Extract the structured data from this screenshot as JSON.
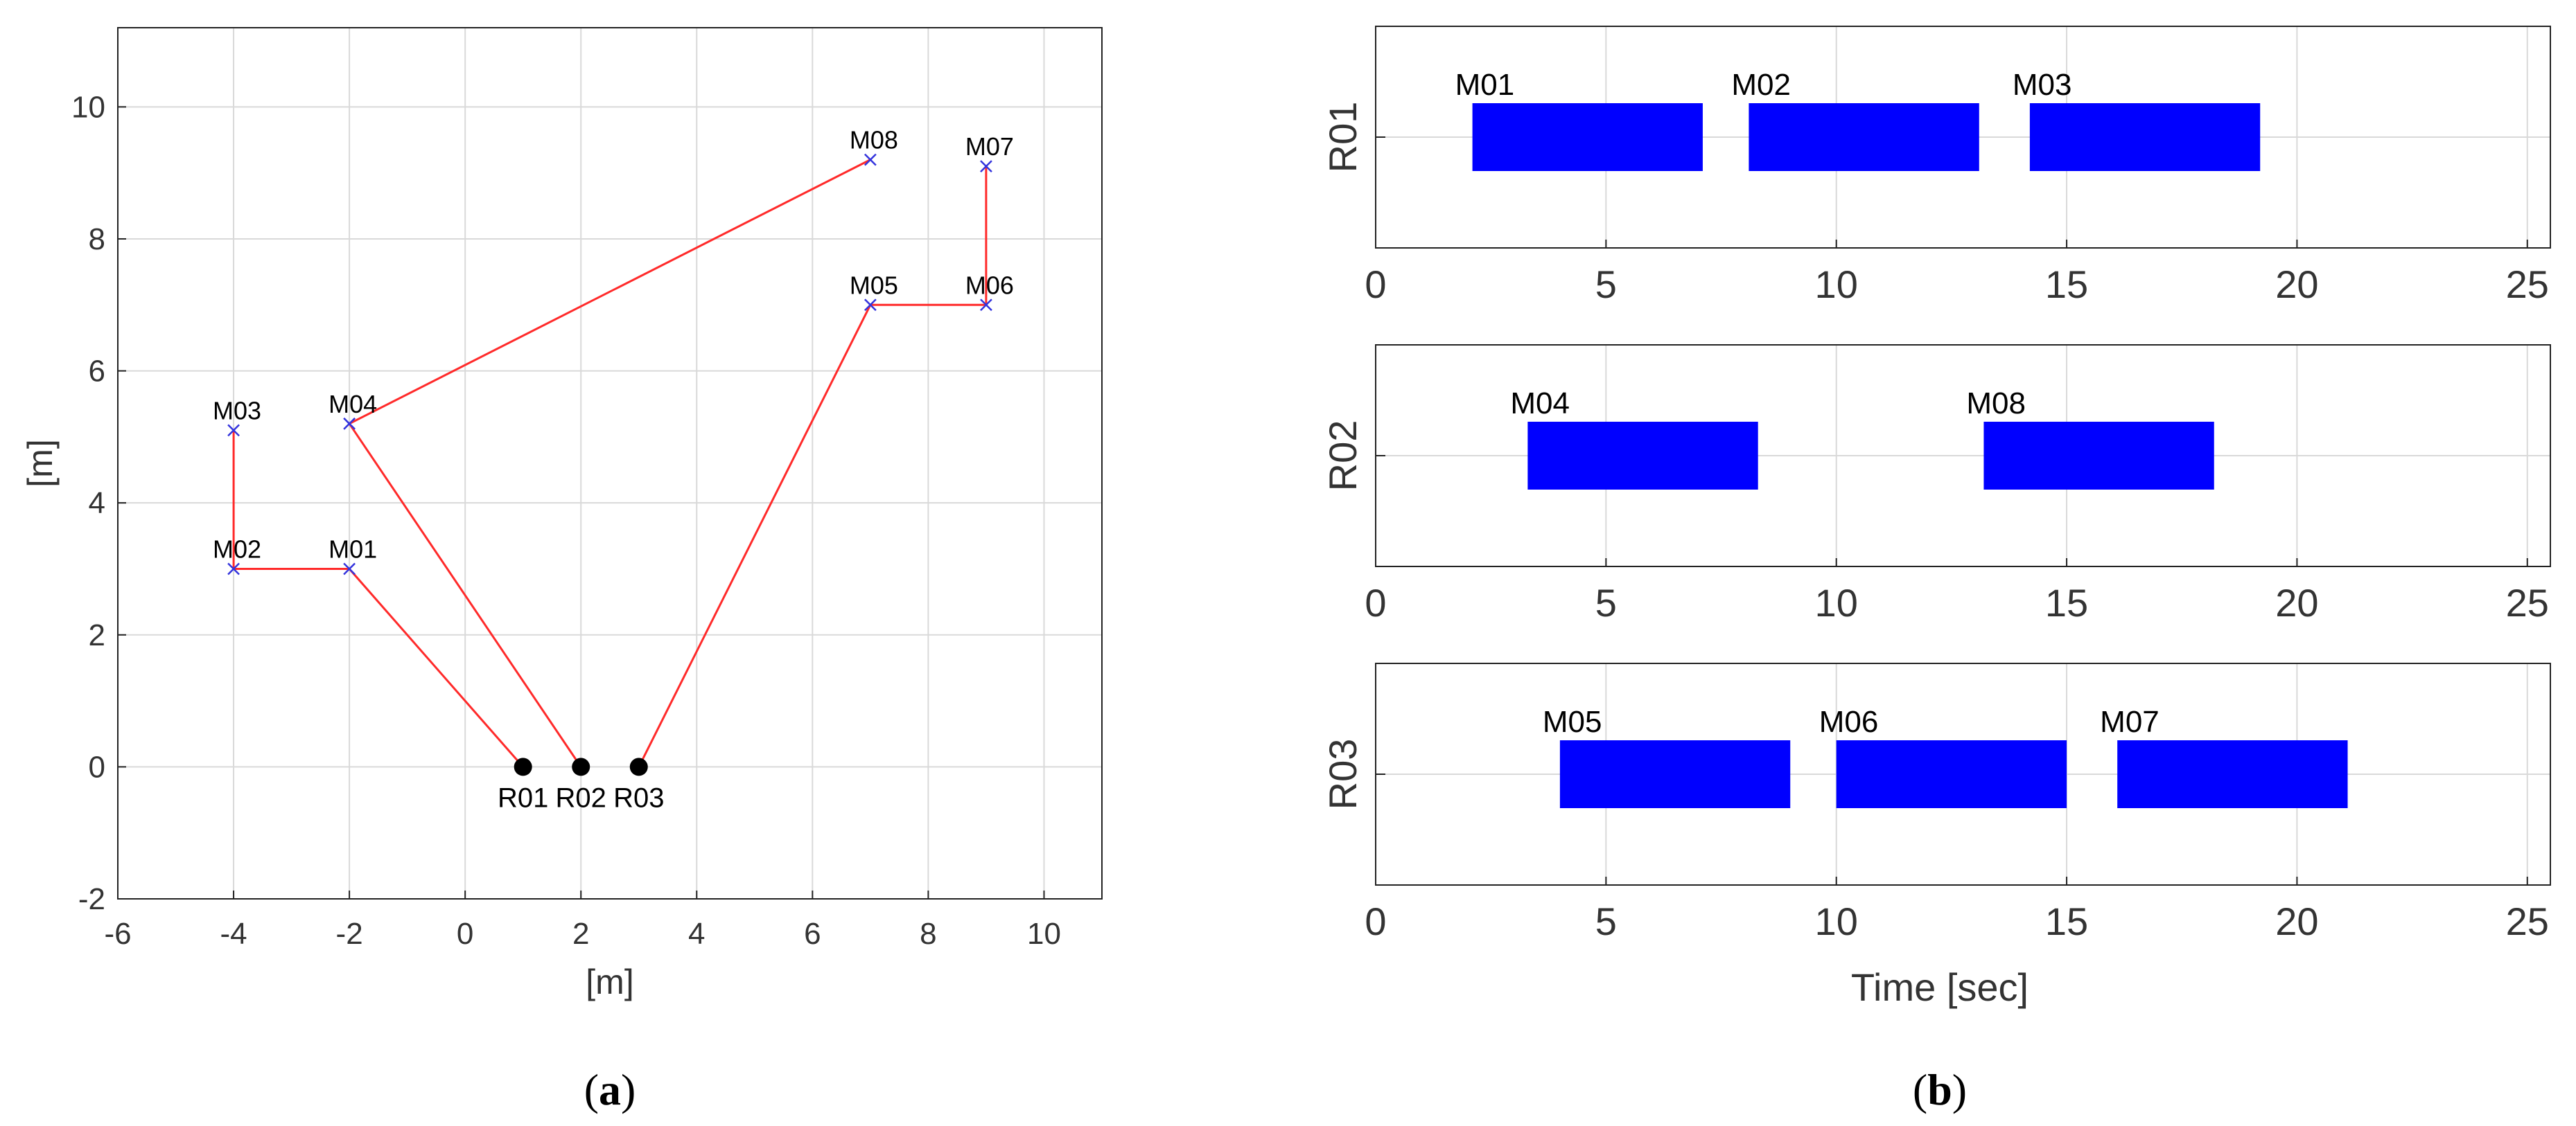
{
  "colors": {
    "grid": "#d9d9d9",
    "axis": "#222222",
    "tick_text": "#333333",
    "path": "#ff2a2a",
    "marker": "#3333dd",
    "robot": "#000000",
    "bar": "#0000ff"
  },
  "chart_data": [
    {
      "type": "scatter",
      "panel_label": "(a)",
      "panel_letter": "a",
      "xlabel": "[m]",
      "ylabel": "[m]",
      "xlim": [
        -6,
        11
      ],
      "ylim": [
        -2,
        11.2
      ],
      "xticks": [
        -6,
        -4,
        -2,
        0,
        2,
        4,
        6,
        8,
        10
      ],
      "yticks": [
        -2,
        0,
        2,
        4,
        6,
        8,
        10
      ],
      "grid": true,
      "robots": [
        {
          "name": "R01",
          "x": 1,
          "y": 0
        },
        {
          "name": "R02",
          "x": 2,
          "y": 0
        },
        {
          "name": "R03",
          "x": 3,
          "y": 0
        }
      ],
      "missions": [
        {
          "name": "M01",
          "x": -2,
          "y": 3
        },
        {
          "name": "M02",
          "x": -4,
          "y": 3
        },
        {
          "name": "M03",
          "x": -4,
          "y": 5.1
        },
        {
          "name": "M04",
          "x": -2,
          "y": 5.2
        },
        {
          "name": "M05",
          "x": 7,
          "y": 7
        },
        {
          "name": "M06",
          "x": 9,
          "y": 7
        },
        {
          "name": "M07",
          "x": 9,
          "y": 9.1
        },
        {
          "name": "M08",
          "x": 7,
          "y": 9.2
        }
      ],
      "routes": [
        [
          "R01",
          "M01",
          "M02",
          "M03"
        ],
        [
          "R02",
          "M04",
          "M08"
        ],
        [
          "R03",
          "M05",
          "M06",
          "M07"
        ]
      ]
    },
    {
      "type": "bar",
      "subtype": "gantt",
      "panel_label": "(b)",
      "panel_letter": "b",
      "xlabel": "Time [sec]",
      "xlim": [
        0,
        25.5
      ],
      "xticks": [
        0,
        5,
        10,
        15,
        20,
        25
      ],
      "grid": true,
      "rows": [
        {
          "name": "R01",
          "tasks": [
            {
              "name": "M01",
              "start": 2.1,
              "end": 7.1
            },
            {
              "name": "M02",
              "start": 8.1,
              "end": 13.1
            },
            {
              "name": "M03",
              "start": 14.2,
              "end": 19.2
            }
          ]
        },
        {
          "name": "R02",
          "tasks": [
            {
              "name": "M04",
              "start": 3.3,
              "end": 8.3
            },
            {
              "name": "M08",
              "start": 13.2,
              "end": 18.2
            }
          ]
        },
        {
          "name": "R03",
          "tasks": [
            {
              "name": "M05",
              "start": 4.0,
              "end": 9.0
            },
            {
              "name": "M06",
              "start": 10.0,
              "end": 15.0
            },
            {
              "name": "M07",
              "start": 16.1,
              "end": 21.1
            }
          ]
        }
      ]
    }
  ]
}
